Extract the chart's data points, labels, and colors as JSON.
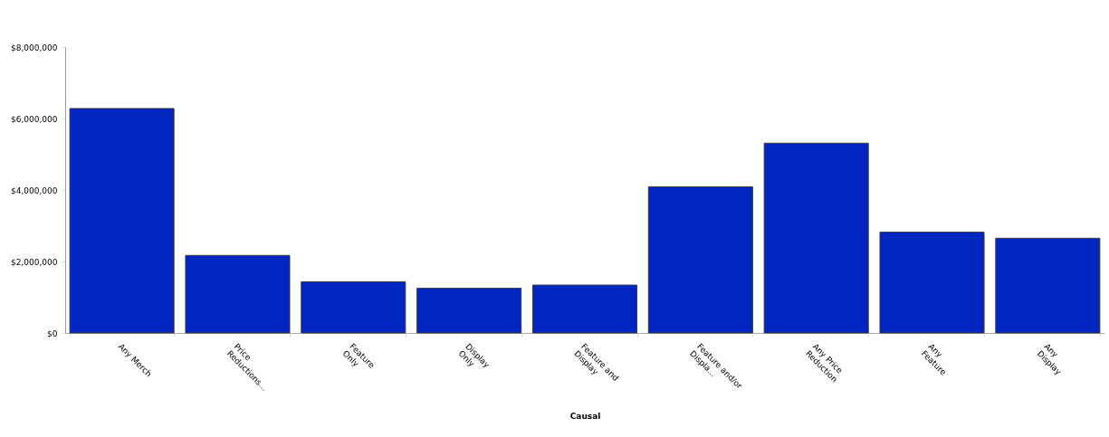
{
  "chart_data": {
    "type": "bar",
    "xlabel": "Causal",
    "categories": [
      "Any Merch",
      "Price Reductions...",
      "Feature Only",
      "Display Only",
      "Feature and Display",
      "Feature and/or Displa...",
      "Any Price Reduction",
      "Any Feature",
      "Any Display"
    ],
    "values": [
      6280000,
      2170000,
      1430000,
      1250000,
      1340000,
      4090000,
      5310000,
      2820000,
      2650000
    ],
    "color": "#0025c0",
    "ylim": [
      0,
      8000000
    ],
    "yticks": [
      {
        "value": 0,
        "label": "$0"
      },
      {
        "value": 2000000,
        "label": "$2,000,000"
      },
      {
        "value": 4000000,
        "label": "$4,000,000"
      },
      {
        "value": 6000000,
        "label": "$6,000,000"
      },
      {
        "value": 8000000,
        "label": "$8,000,000"
      }
    ],
    "grid": false
  }
}
